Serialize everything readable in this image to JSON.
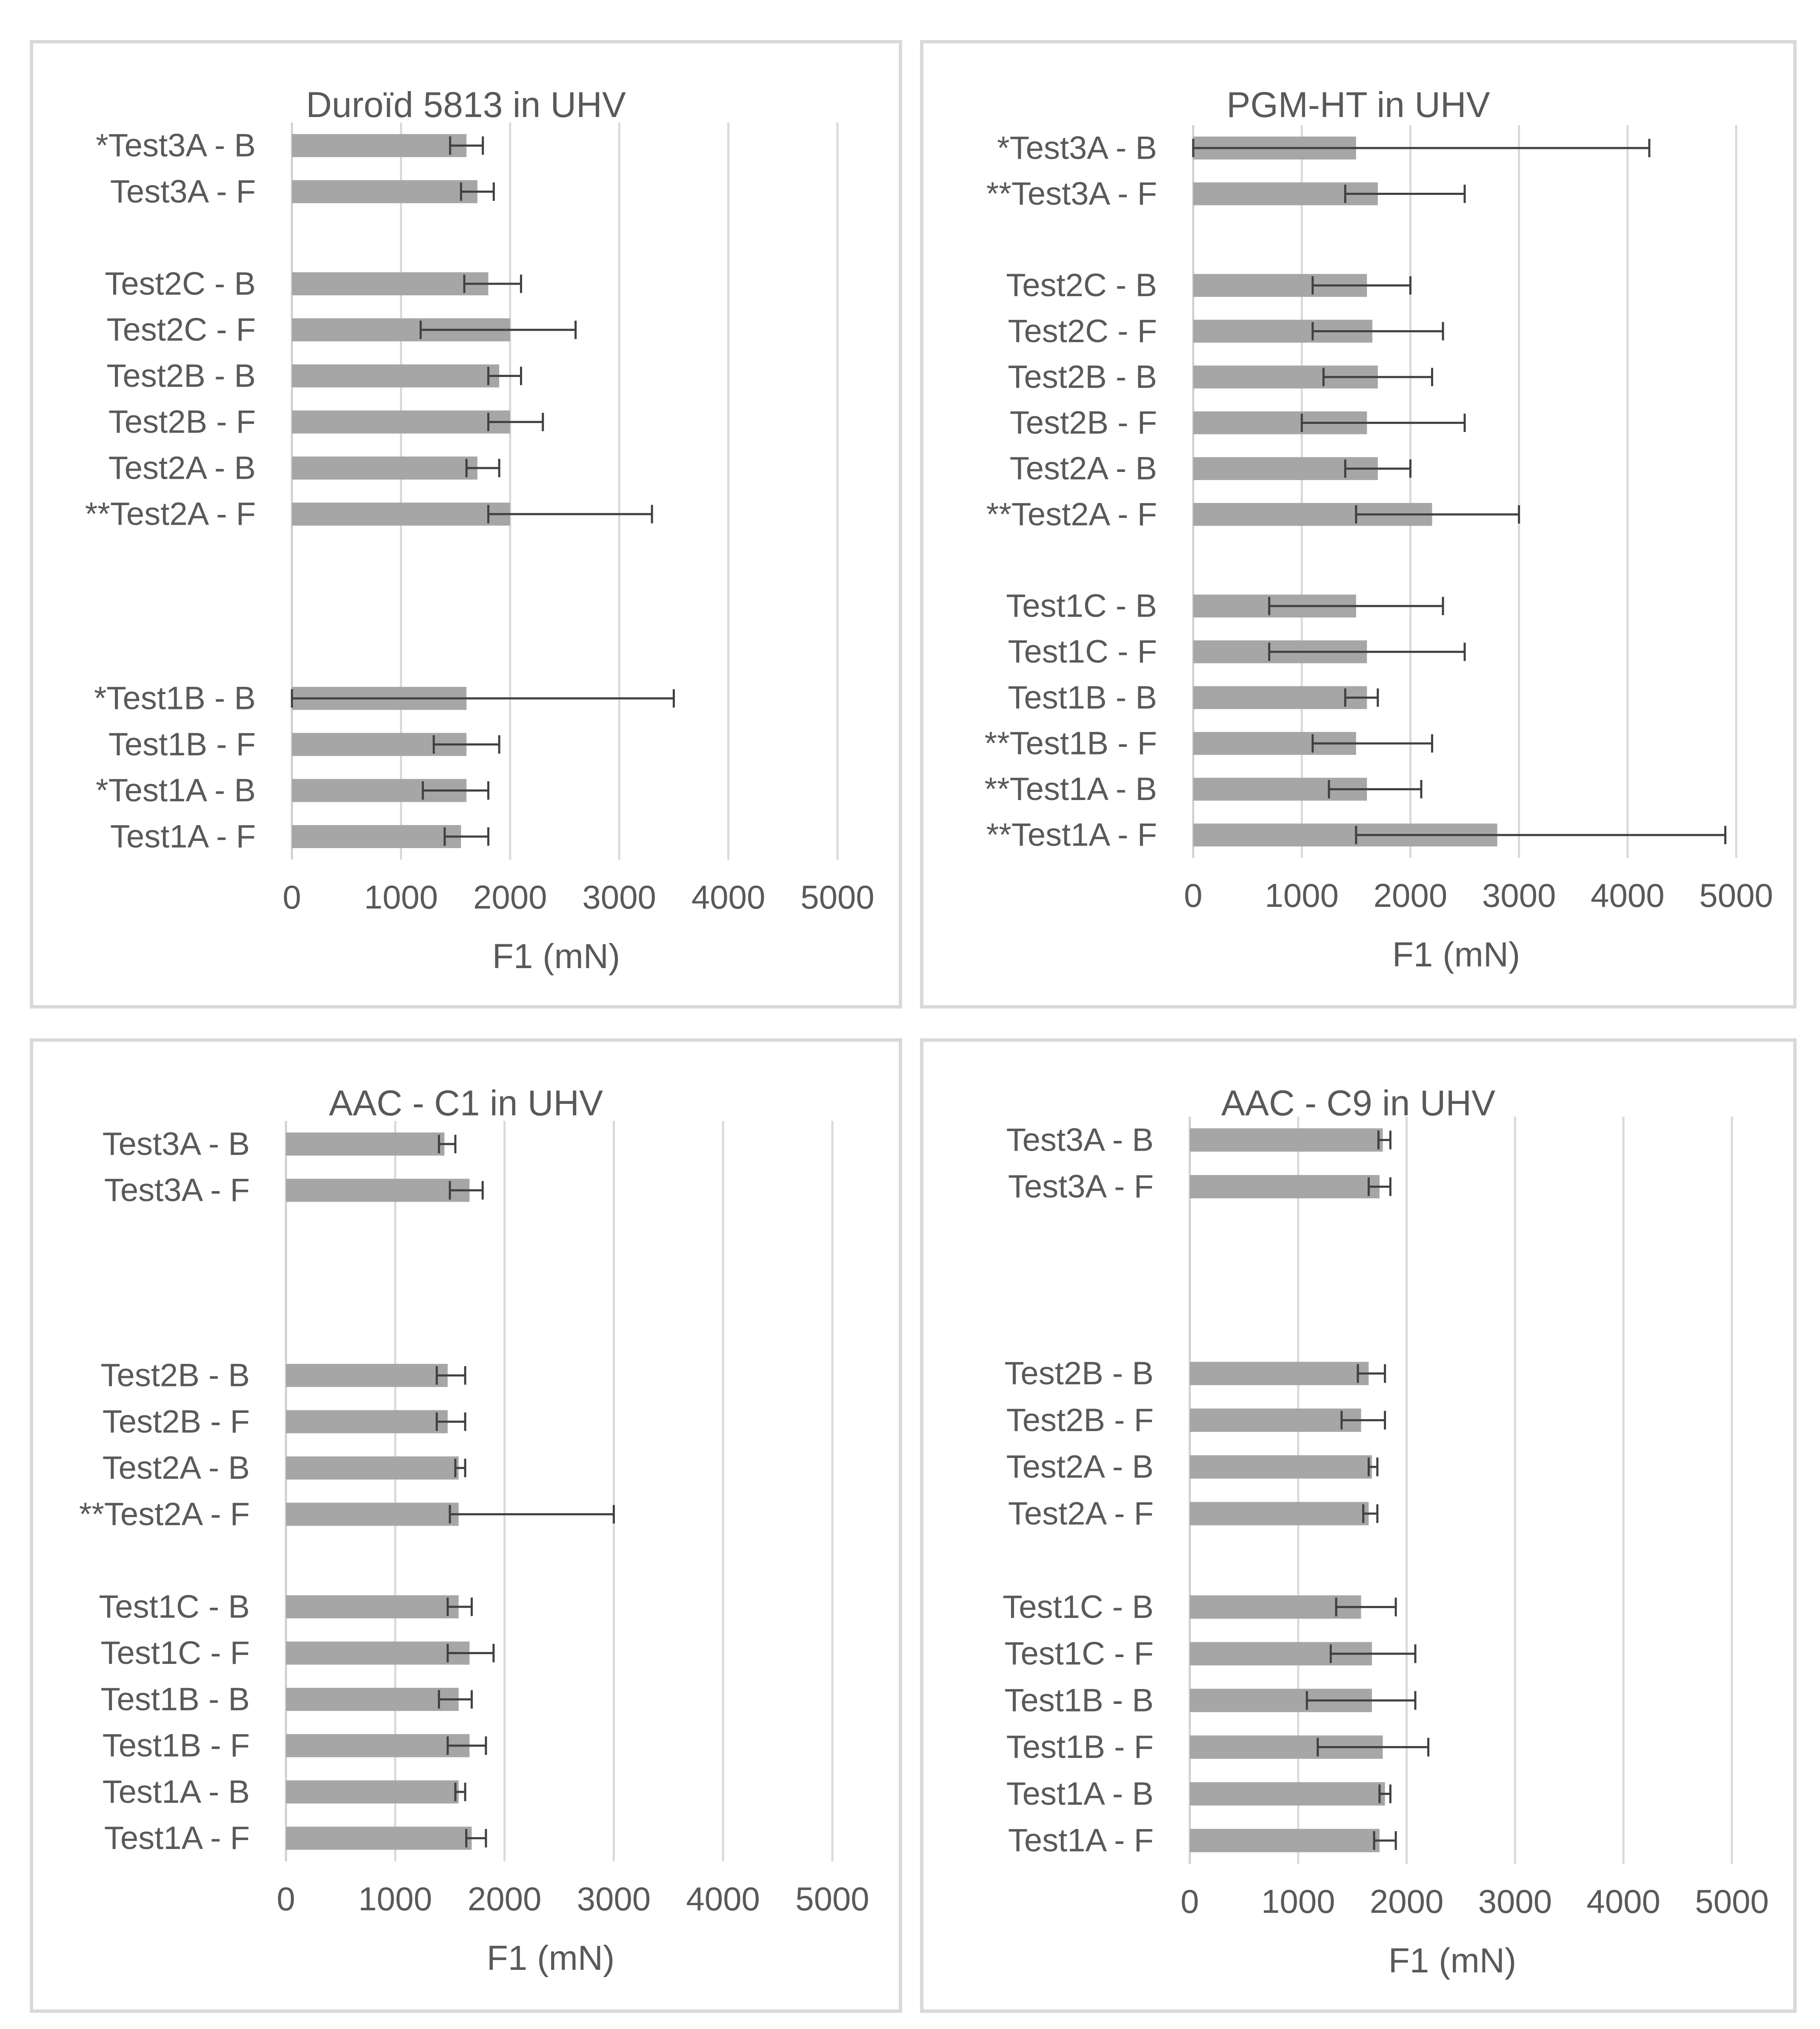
{
  "chart_data": [
    {
      "type": "bar",
      "orientation": "horizontal",
      "title": "Duroïd 5813 in UHV",
      "xlabel": "F1 (mN)",
      "xlim": [
        0,
        5000
      ],
      "xticks": [
        0,
        1000,
        2000,
        3000,
        4000,
        5000
      ],
      "grid": true,
      "legend": "none",
      "bar_color": "#a6a6a6",
      "rows": [
        {
          "label": "*Test3A - B",
          "value": 1600,
          "err_low": 1450,
          "err_high": 1750
        },
        {
          "label": "Test3A - F",
          "value": 1700,
          "err_low": 1550,
          "err_high": 1850
        },
        {
          "label": "",
          "value": null
        },
        {
          "label": "Test2C - B",
          "value": 1800,
          "err_low": 1580,
          "err_high": 2100
        },
        {
          "label": "Test2C - F",
          "value": 2000,
          "err_low": 1180,
          "err_high": 2600
        },
        {
          "label": "Test2B - B",
          "value": 1900,
          "err_low": 1800,
          "err_high": 2100
        },
        {
          "label": "Test2B - F",
          "value": 2000,
          "err_low": 1800,
          "err_high": 2300
        },
        {
          "label": "Test2A - B",
          "value": 1700,
          "err_low": 1600,
          "err_high": 1900
        },
        {
          "label": "**Test2A - F",
          "value": 2000,
          "err_low": 1800,
          "err_high": 3300
        },
        {
          "label": "",
          "value": null
        },
        {
          "label": "",
          "value": null
        },
        {
          "label": "",
          "value": null
        },
        {
          "label": "*Test1B - B",
          "value": 1600,
          "err_low": 0,
          "err_high": 3500
        },
        {
          "label": "Test1B - F",
          "value": 1600,
          "err_low": 1300,
          "err_high": 1900
        },
        {
          "label": "*Test1A - B",
          "value": 1600,
          "err_low": 1200,
          "err_high": 1800
        },
        {
          "label": "Test1A - F",
          "value": 1550,
          "err_low": 1400,
          "err_high": 1800
        }
      ]
    },
    {
      "type": "bar",
      "orientation": "horizontal",
      "title": "PGM-HT in UHV",
      "xlabel": "F1 (mN)",
      "xlim": [
        0,
        5000
      ],
      "xticks": [
        0,
        1000,
        2000,
        3000,
        4000,
        5000
      ],
      "grid": true,
      "legend": "none",
      "bar_color": "#a6a6a6",
      "rows": [
        {
          "label": "*Test3A - B",
          "value": 1500,
          "err_low": 0,
          "err_high": 4200
        },
        {
          "label": "**Test3A - F",
          "value": 1700,
          "err_low": 1400,
          "err_high": 2500
        },
        {
          "label": "",
          "value": null
        },
        {
          "label": "Test2C - B",
          "value": 1600,
          "err_low": 1100,
          "err_high": 2000
        },
        {
          "label": "Test2C - F",
          "value": 1650,
          "err_low": 1100,
          "err_high": 2300
        },
        {
          "label": "Test2B - B",
          "value": 1700,
          "err_low": 1200,
          "err_high": 2200
        },
        {
          "label": "Test2B - F",
          "value": 1600,
          "err_low": 1000,
          "err_high": 2500
        },
        {
          "label": "Test2A - B",
          "value": 1700,
          "err_low": 1400,
          "err_high": 2000
        },
        {
          "label": "**Test2A - F",
          "value": 2200,
          "err_low": 1500,
          "err_high": 3000
        },
        {
          "label": "",
          "value": null
        },
        {
          "label": "Test1C - B",
          "value": 1500,
          "err_low": 700,
          "err_high": 2300
        },
        {
          "label": "Test1C - F",
          "value": 1600,
          "err_low": 700,
          "err_high": 2500
        },
        {
          "label": "Test1B - B",
          "value": 1600,
          "err_low": 1400,
          "err_high": 1700
        },
        {
          "label": "**Test1B - F",
          "value": 1500,
          "err_low": 1100,
          "err_high": 2200
        },
        {
          "label": "**Test1A - B",
          "value": 1600,
          "err_low": 1250,
          "err_high": 2100
        },
        {
          "label": "**Test1A - F",
          "value": 2800,
          "err_low": 1500,
          "err_high": 4900
        }
      ]
    },
    {
      "type": "bar",
      "orientation": "horizontal",
      "title": "AAC - C1 in UHV",
      "xlabel": "F1 (mN)",
      "xlim": [
        0,
        5000
      ],
      "xticks": [
        0,
        1000,
        2000,
        3000,
        4000,
        5000
      ],
      "grid": true,
      "legend": "none",
      "bar_color": "#a6a6a6",
      "rows": [
        {
          "label": "Test3A - B",
          "value": 1450,
          "err_low": 1400,
          "err_high": 1550
        },
        {
          "label": "Test3A - F",
          "value": 1680,
          "err_low": 1500,
          "err_high": 1800
        },
        {
          "label": "",
          "value": null
        },
        {
          "label": "",
          "value": null
        },
        {
          "label": "",
          "value": null
        },
        {
          "label": "Test2B - B",
          "value": 1480,
          "err_low": 1380,
          "err_high": 1640
        },
        {
          "label": "Test2B - F",
          "value": 1480,
          "err_low": 1380,
          "err_high": 1640
        },
        {
          "label": "Test2A - B",
          "value": 1580,
          "err_low": 1550,
          "err_high": 1640
        },
        {
          "label": "**Test2A - F",
          "value": 1580,
          "err_low": 1500,
          "err_high": 3000
        },
        {
          "label": "",
          "value": null
        },
        {
          "label": "Test1C - B",
          "value": 1580,
          "err_low": 1480,
          "err_high": 1700
        },
        {
          "label": "Test1C - F",
          "value": 1680,
          "err_low": 1480,
          "err_high": 1900
        },
        {
          "label": "Test1B - B",
          "value": 1580,
          "err_low": 1400,
          "err_high": 1700
        },
        {
          "label": "Test1B - F",
          "value": 1680,
          "err_low": 1480,
          "err_high": 1830
        },
        {
          "label": "Test1A - B",
          "value": 1580,
          "err_low": 1550,
          "err_high": 1640
        },
        {
          "label": "Test1A - F",
          "value": 1700,
          "err_low": 1650,
          "err_high": 1830
        }
      ]
    },
    {
      "type": "bar",
      "orientation": "horizontal",
      "title": "AAC - C9 in UHV",
      "xlabel": "F1 (mN)",
      "xlim": [
        0,
        5000
      ],
      "xticks": [
        0,
        1000,
        2000,
        3000,
        4000,
        5000
      ],
      "grid": true,
      "legend": "none",
      "bar_color": "#a6a6a6",
      "rows": [
        {
          "label": "Test3A - B",
          "value": 1780,
          "err_low": 1740,
          "err_high": 1850
        },
        {
          "label": "Test3A - F",
          "value": 1750,
          "err_low": 1650,
          "err_high": 1850
        },
        {
          "label": "",
          "value": null
        },
        {
          "label": "",
          "value": null
        },
        {
          "label": "",
          "value": null
        },
        {
          "label": "Test2B - B",
          "value": 1650,
          "err_low": 1550,
          "err_high": 1800
        },
        {
          "label": "Test2B - F",
          "value": 1580,
          "err_low": 1400,
          "err_high": 1800
        },
        {
          "label": "Test2A - B",
          "value": 1680,
          "err_low": 1650,
          "err_high": 1730
        },
        {
          "label": "Test2A - F",
          "value": 1650,
          "err_low": 1600,
          "err_high": 1730
        },
        {
          "label": "",
          "value": null
        },
        {
          "label": "Test1C - B",
          "value": 1580,
          "err_low": 1350,
          "err_high": 1900
        },
        {
          "label": "Test1C - F",
          "value": 1680,
          "err_low": 1300,
          "err_high": 2080
        },
        {
          "label": "Test1B - B",
          "value": 1680,
          "err_low": 1080,
          "err_high": 2080
        },
        {
          "label": "Test1B - F",
          "value": 1780,
          "err_low": 1180,
          "err_high": 2200
        },
        {
          "label": "Test1A - B",
          "value": 1800,
          "err_low": 1750,
          "err_high": 1850
        },
        {
          "label": "Test1A - F",
          "value": 1750,
          "err_low": 1700,
          "err_high": 1900
        }
      ]
    }
  ]
}
